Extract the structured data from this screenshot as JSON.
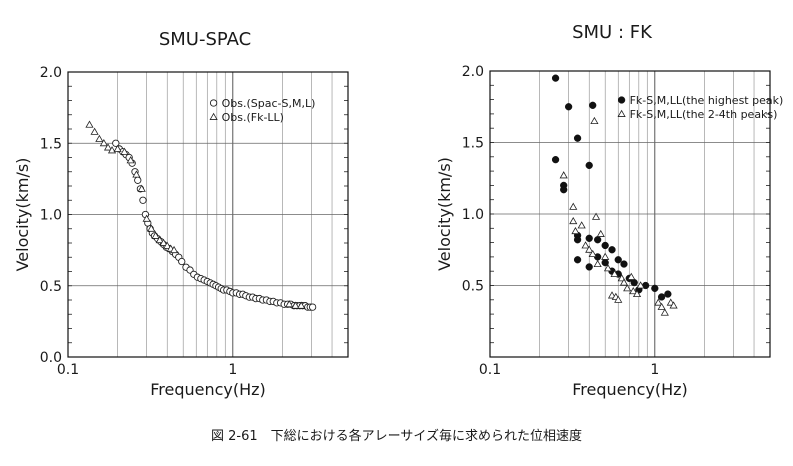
{
  "chart_data": [
    {
      "type": "scatter",
      "title": "SMU-SPAC",
      "xlabel": "Frequency(Hz)",
      "ylabel": "Velocity(km/s)",
      "xscale": "log",
      "xlim": [
        0.1,
        5
      ],
      "ylim": [
        0.0,
        2.0
      ],
      "xticks": [
        0.1,
        1
      ],
      "xtick_labels": [
        "0.1",
        "1"
      ],
      "yticks": [
        0.0,
        0.5,
        1.0,
        1.5,
        2.0
      ],
      "ytick_labels": [
        "0.0",
        "0.5",
        "1.0",
        "1.5",
        "2.0"
      ],
      "grid": true,
      "legend": "top-right",
      "series": [
        {
          "name": "Obs.(Spac-S,M,L)",
          "marker": "open-circle",
          "points": [
            [
              0.195,
              1.5
            ],
            [
              0.205,
              1.46
            ],
            [
              0.215,
              1.44
            ],
            [
              0.225,
              1.42
            ],
            [
              0.235,
              1.4
            ],
            [
              0.245,
              1.36
            ],
            [
              0.255,
              1.3
            ],
            [
              0.265,
              1.24
            ],
            [
              0.275,
              1.18
            ],
            [
              0.285,
              1.1
            ],
            [
              0.295,
              1.0
            ],
            [
              0.305,
              0.94
            ],
            [
              0.315,
              0.9
            ],
            [
              0.325,
              0.87
            ],
            [
              0.335,
              0.85
            ],
            [
              0.35,
              0.83
            ],
            [
              0.365,
              0.81
            ],
            [
              0.38,
              0.79
            ],
            [
              0.395,
              0.77
            ],
            [
              0.41,
              0.76
            ],
            [
              0.43,
              0.74
            ],
            [
              0.45,
              0.72
            ],
            [
              0.47,
              0.7
            ],
            [
              0.49,
              0.67
            ],
            [
              0.52,
              0.63
            ],
            [
              0.55,
              0.61
            ],
            [
              0.58,
              0.58
            ],
            [
              0.61,
              0.56
            ],
            [
              0.64,
              0.55
            ],
            [
              0.67,
              0.54
            ],
            [
              0.7,
              0.53
            ],
            [
              0.73,
              0.52
            ],
            [
              0.76,
              0.51
            ],
            [
              0.79,
              0.5
            ],
            [
              0.82,
              0.49
            ],
            [
              0.85,
              0.48
            ],
            [
              0.88,
              0.47
            ],
            [
              0.92,
              0.47
            ],
            [
              0.96,
              0.46
            ],
            [
              1.0,
              0.45
            ],
            [
              1.05,
              0.45
            ],
            [
              1.1,
              0.44
            ],
            [
              1.15,
              0.44
            ],
            [
              1.2,
              0.43
            ],
            [
              1.26,
              0.42
            ],
            [
              1.32,
              0.42
            ],
            [
              1.38,
              0.41
            ],
            [
              1.45,
              0.41
            ],
            [
              1.52,
              0.4
            ],
            [
              1.6,
              0.4
            ],
            [
              1.68,
              0.39
            ],
            [
              1.76,
              0.39
            ],
            [
              1.85,
              0.38
            ],
            [
              1.95,
              0.38
            ],
            [
              2.05,
              0.37
            ],
            [
              2.15,
              0.37
            ],
            [
              2.25,
              0.37
            ],
            [
              2.35,
              0.36
            ],
            [
              2.45,
              0.36
            ],
            [
              2.55,
              0.36
            ],
            [
              2.65,
              0.36
            ],
            [
              2.75,
              0.36
            ],
            [
              2.85,
              0.35
            ],
            [
              2.95,
              0.35
            ],
            [
              3.05,
              0.35
            ]
          ]
        },
        {
          "name": "Obs.(Fk-LL)",
          "marker": "open-triangle",
          "points": [
            [
              0.135,
              1.63
            ],
            [
              0.145,
              1.58
            ],
            [
              0.155,
              1.53
            ],
            [
              0.165,
              1.5
            ],
            [
              0.175,
              1.47
            ],
            [
              0.185,
              1.45
            ],
            [
              0.2,
              1.46
            ],
            [
              0.22,
              1.44
            ],
            [
              0.24,
              1.38
            ],
            [
              0.26,
              1.28
            ],
            [
              0.28,
              1.18
            ],
            [
              0.3,
              0.97
            ],
            [
              0.32,
              0.9
            ],
            [
              0.34,
              0.85
            ],
            [
              0.36,
              0.82
            ],
            [
              0.38,
              0.8
            ],
            [
              0.4,
              0.78
            ],
            [
              0.42,
              0.76
            ],
            [
              0.44,
              0.75
            ],
            [
              2.2,
              0.37
            ],
            [
              2.4,
              0.36
            ],
            [
              2.6,
              0.36
            ]
          ]
        }
      ]
    },
    {
      "type": "scatter",
      "title": "SMU : FK",
      "xlabel": "Frequency(Hz)",
      "ylabel": "Velocity(km/s)",
      "xscale": "log",
      "xlim": [
        0.1,
        5
      ],
      "ylim": [
        0.0,
        2.0
      ],
      "xticks": [
        0.1,
        1
      ],
      "xtick_labels": [
        "0.1",
        "1"
      ],
      "yticks": [
        0.5,
        1.0,
        1.5,
        2.0
      ],
      "ytick_labels": [
        "0.5",
        "1.0",
        "1.5",
        "2.0"
      ],
      "grid": true,
      "legend": "top-right",
      "series": [
        {
          "name": "Fk-S,M,LL(the highest peak)",
          "marker": "filled-circle",
          "points": [
            [
              0.25,
              1.95
            ],
            [
              0.25,
              1.38
            ],
            [
              0.28,
              1.2
            ],
            [
              0.28,
              1.17
            ],
            [
              0.3,
              1.75
            ],
            [
              0.34,
              1.53
            ],
            [
              0.34,
              0.85
            ],
            [
              0.34,
              0.82
            ],
            [
              0.34,
              0.68
            ],
            [
              0.4,
              1.34
            ],
            [
              0.4,
              0.83
            ],
            [
              0.4,
              0.63
            ],
            [
              0.42,
              1.76
            ],
            [
              0.45,
              0.82
            ],
            [
              0.45,
              0.7
            ],
            [
              0.5,
              0.78
            ],
            [
              0.5,
              0.66
            ],
            [
              0.55,
              0.75
            ],
            [
              0.55,
              0.6
            ],
            [
              0.6,
              0.68
            ],
            [
              0.6,
              0.58
            ],
            [
              0.65,
              0.65
            ],
            [
              0.7,
              0.55
            ],
            [
              0.75,
              0.52
            ],
            [
              0.8,
              0.47
            ],
            [
              0.88,
              0.5
            ],
            [
              1.0,
              0.48
            ],
            [
              1.1,
              0.42
            ],
            [
              1.2,
              0.44
            ]
          ]
        },
        {
          "name": "Fk-S,M,LL(the 2-4th peaks)",
          "marker": "open-triangle",
          "points": [
            [
              0.28,
              1.27
            ],
            [
              0.32,
              1.05
            ],
            [
              0.32,
              0.95
            ],
            [
              0.33,
              0.88
            ],
            [
              0.36,
              0.92
            ],
            [
              0.38,
              0.78
            ],
            [
              0.4,
              0.75
            ],
            [
              0.42,
              0.72
            ],
            [
              0.43,
              1.65
            ],
            [
              0.44,
              0.98
            ],
            [
              0.45,
              0.65
            ],
            [
              0.47,
              0.86
            ],
            [
              0.5,
              0.7
            ],
            [
              0.52,
              0.62
            ],
            [
              0.55,
              0.43
            ],
            [
              0.57,
              0.58
            ],
            [
              0.58,
              0.42
            ],
            [
              0.6,
              0.4
            ],
            [
              0.63,
              0.55
            ],
            [
              0.65,
              0.52
            ],
            [
              0.68,
              0.48
            ],
            [
              0.72,
              0.56
            ],
            [
              0.74,
              0.46
            ],
            [
              0.78,
              0.44
            ],
            [
              0.82,
              0.5
            ],
            [
              1.05,
              0.38
            ],
            [
              1.1,
              0.35
            ],
            [
              1.15,
              0.31
            ],
            [
              1.25,
              0.38
            ],
            [
              1.3,
              0.36
            ]
          ]
        }
      ]
    }
  ],
  "caption": {
    "text": "図 2-61　下総における各アレーサイズ毎に求められた位相速度"
  }
}
